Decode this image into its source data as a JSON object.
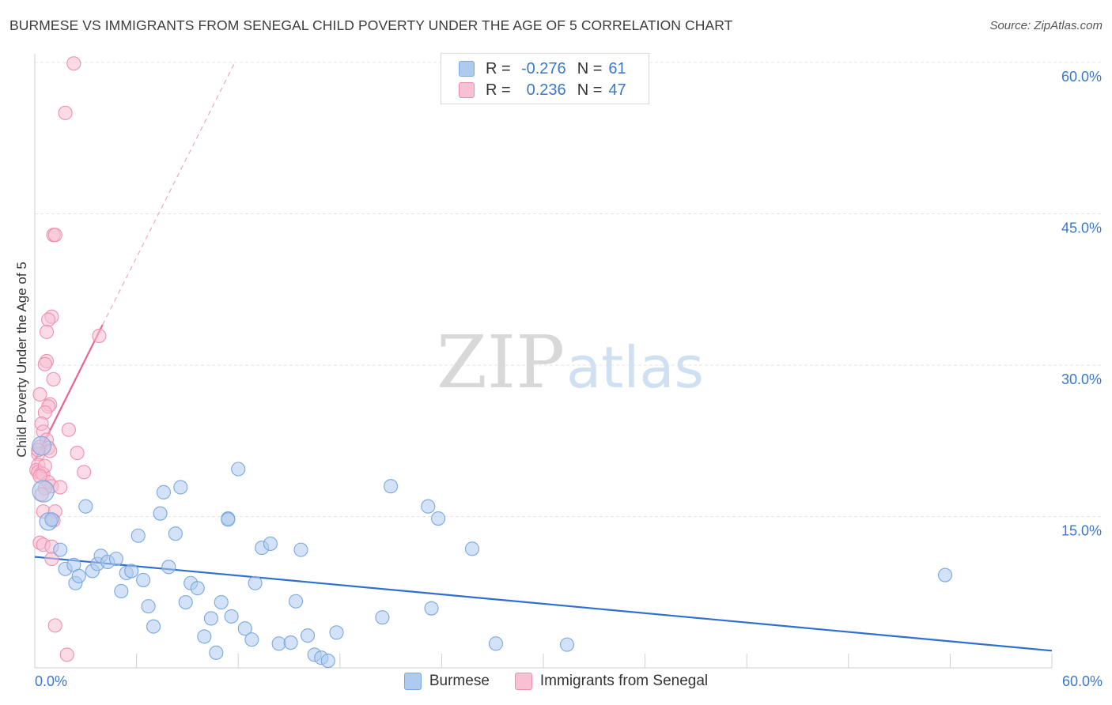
{
  "title": "BURMESE VS IMMIGRANTS FROM SENEGAL CHILD POVERTY UNDER THE AGE OF 5 CORRELATION CHART",
  "source": "Source: ZipAtlas.com",
  "watermark": {
    "zip": "ZIP",
    "atlas": "atlas"
  },
  "colors": {
    "blue_fill": "#aecbee",
    "blue_stroke": "#7aa8e0",
    "blue_line": "#2f6fd0",
    "pink_fill": "#f8c0d2",
    "pink_stroke": "#ef8fb0",
    "pink_line": "#e8638f",
    "axis_text": "#3a78c9",
    "grid": "#e6e6e6"
  },
  "legend": {
    "rows": [
      {
        "r_label": "R =",
        "r_value": "-0.276",
        "n_label": "N =",
        "n_value": "61"
      },
      {
        "r_label": "R =",
        "r_value": "0.236",
        "n_label": "N =",
        "n_value": "47"
      }
    ]
  },
  "chart_data": {
    "type": "scatter",
    "title": "BURMESE VS IMMIGRANTS FROM SENEGAL CHILD POVERTY UNDER THE AGE OF 5 CORRELATION CHART",
    "xlabel": "",
    "ylabel": "Child Poverty Under the Age of 5",
    "xlim": [
      0,
      60
    ],
    "ylim": [
      0,
      60
    ],
    "x_tick_labels": [
      {
        "value": 0,
        "label": "0.0%"
      },
      {
        "value": 60,
        "label": "60.0%"
      }
    ],
    "y_ticks": [
      {
        "value": 15,
        "label": "15.0%"
      },
      {
        "value": 30,
        "label": "30.0%"
      },
      {
        "value": 45,
        "label": "45.0%"
      },
      {
        "value": 60,
        "label": "60.0%"
      }
    ],
    "x_minor_ticks": [
      0,
      6,
      12,
      18,
      24,
      30,
      36,
      42,
      48,
      54,
      60
    ],
    "series": [
      {
        "name": "Burmese",
        "r": -0.276,
        "n": 61,
        "trend": {
          "x": [
            0,
            60
          ],
          "y": [
            11.0,
            1.7
          ],
          "dashed_extension": false
        },
        "points": [
          [
            0.5,
            17.5,
            1.6
          ],
          [
            0.4,
            22.0,
            1.4
          ],
          [
            0.8,
            14.5,
            1.3
          ],
          [
            1.0,
            14.7,
            1.0
          ],
          [
            1.5,
            11.7,
            1.0
          ],
          [
            1.8,
            9.8,
            1.0
          ],
          [
            2.3,
            10.2,
            1.0
          ],
          [
            2.4,
            8.4,
            1.0
          ],
          [
            2.6,
            9.1,
            1.0
          ],
          [
            3.0,
            16.0,
            1.0
          ],
          [
            3.4,
            9.6,
            1.0
          ],
          [
            3.7,
            10.3,
            1.0
          ],
          [
            3.9,
            11.1,
            1.0
          ],
          [
            4.3,
            10.5,
            1.0
          ],
          [
            4.8,
            10.8,
            1.0
          ],
          [
            5.1,
            7.6,
            1.0
          ],
          [
            5.4,
            9.4,
            1.0
          ],
          [
            5.7,
            9.6,
            1.0
          ],
          [
            6.1,
            13.1,
            1.0
          ],
          [
            6.4,
            8.7,
            1.0
          ],
          [
            6.7,
            6.1,
            1.0
          ],
          [
            7.0,
            4.1,
            1.0
          ],
          [
            7.4,
            15.3,
            1.0
          ],
          [
            7.6,
            17.4,
            1.0
          ],
          [
            7.9,
            10.0,
            1.0
          ],
          [
            8.3,
            13.3,
            1.0
          ],
          [
            8.6,
            17.9,
            1.0
          ],
          [
            8.9,
            6.5,
            1.0
          ],
          [
            9.2,
            8.4,
            1.0
          ],
          [
            9.6,
            7.9,
            1.0
          ],
          [
            10.0,
            3.1,
            1.0
          ],
          [
            10.4,
            4.9,
            1.0
          ],
          [
            10.7,
            1.5,
            1.0
          ],
          [
            11.0,
            6.5,
            1.0
          ],
          [
            11.4,
            14.8,
            1.0
          ],
          [
            11.6,
            5.1,
            1.0
          ],
          [
            11.4,
            14.7,
            1.0
          ],
          [
            12.0,
            19.7,
            1.0
          ],
          [
            12.4,
            3.9,
            1.0
          ],
          [
            12.8,
            2.8,
            1.0
          ],
          [
            13.4,
            11.9,
            1.0
          ],
          [
            13.9,
            12.3,
            1.0
          ],
          [
            13.0,
            8.4,
            1.0
          ],
          [
            14.4,
            2.4,
            1.0
          ],
          [
            15.1,
            2.5,
            1.0
          ],
          [
            15.4,
            6.6,
            1.0
          ],
          [
            15.7,
            11.7,
            1.0
          ],
          [
            16.1,
            3.2,
            1.0
          ],
          [
            16.5,
            1.3,
            1.0
          ],
          [
            16.9,
            1.0,
            1.0
          ],
          [
            17.3,
            0.7,
            1.0
          ],
          [
            17.8,
            3.5,
            1.0
          ],
          [
            20.5,
            5.0,
            1.0
          ],
          [
            21.0,
            18.0,
            1.0
          ],
          [
            23.2,
            16.0,
            1.0
          ],
          [
            23.4,
            5.9,
            1.0
          ],
          [
            23.8,
            14.8,
            1.0
          ],
          [
            25.8,
            11.8,
            1.0
          ],
          [
            27.2,
            2.4,
            1.0
          ],
          [
            31.4,
            2.3,
            1.0
          ],
          [
            53.7,
            9.2,
            1.0
          ]
        ]
      },
      {
        "name": "Immigrants from Senegal",
        "r": 0.236,
        "n": 47,
        "trend": {
          "x": [
            0,
            4.0
          ],
          "y": [
            20.5,
            34.0
          ],
          "dashed_extension": true,
          "dashed_to": [
            11.8,
            60.0
          ]
        },
        "points": [
          [
            2.3,
            59.9,
            1.0
          ],
          [
            1.8,
            55.0,
            1.0
          ],
          [
            1.1,
            42.9,
            1.0
          ],
          [
            1.2,
            42.9,
            1.0
          ],
          [
            1.0,
            34.8,
            1.0
          ],
          [
            0.8,
            34.5,
            1.0
          ],
          [
            0.7,
            33.3,
            1.0
          ],
          [
            3.8,
            32.9,
            1.0
          ],
          [
            0.7,
            30.4,
            1.0
          ],
          [
            0.6,
            30.1,
            1.0
          ],
          [
            1.1,
            28.6,
            1.0
          ],
          [
            0.3,
            27.1,
            1.0
          ],
          [
            0.9,
            26.1,
            1.0
          ],
          [
            0.8,
            25.9,
            1.0
          ],
          [
            0.6,
            25.3,
            1.0
          ],
          [
            0.4,
            24.2,
            1.0
          ],
          [
            2.0,
            23.6,
            1.0
          ],
          [
            0.5,
            23.4,
            1.0
          ],
          [
            0.7,
            22.6,
            1.0
          ],
          [
            0.3,
            21.9,
            1.0
          ],
          [
            0.8,
            21.8,
            1.0
          ],
          [
            0.9,
            21.5,
            1.0
          ],
          [
            2.5,
            21.3,
            1.0
          ],
          [
            0.2,
            21.2,
            1.0
          ],
          [
            0.2,
            20.1,
            1.0
          ],
          [
            0.1,
            19.6,
            1.0
          ],
          [
            0.2,
            19.4,
            1.0
          ],
          [
            0.4,
            19.3,
            1.0
          ],
          [
            0.5,
            19.2,
            1.0
          ],
          [
            2.9,
            19.4,
            1.0
          ],
          [
            0.8,
            18.4,
            1.0
          ],
          [
            1.0,
            18.0,
            1.0
          ],
          [
            0.6,
            17.8,
            1.0
          ],
          [
            1.5,
            17.9,
            1.0
          ],
          [
            0.5,
            15.5,
            1.0
          ],
          [
            1.2,
            15.5,
            1.0
          ],
          [
            1.1,
            14.6,
            1.0
          ],
          [
            0.3,
            12.4,
            1.0
          ],
          [
            0.5,
            12.2,
            1.0
          ],
          [
            1.0,
            12.0,
            1.0
          ],
          [
            1.0,
            10.8,
            1.0
          ],
          [
            0.4,
            17.2,
            1.0
          ],
          [
            0.2,
            21.6,
            1.0
          ],
          [
            0.6,
            20.0,
            1.0
          ],
          [
            1.2,
            4.2,
            1.0
          ],
          [
            1.9,
            1.3,
            1.0
          ],
          [
            0.3,
            19.0,
            1.0
          ]
        ]
      }
    ],
    "legend_entries": [
      "Burmese",
      "Immigrants from Senegal"
    ]
  }
}
